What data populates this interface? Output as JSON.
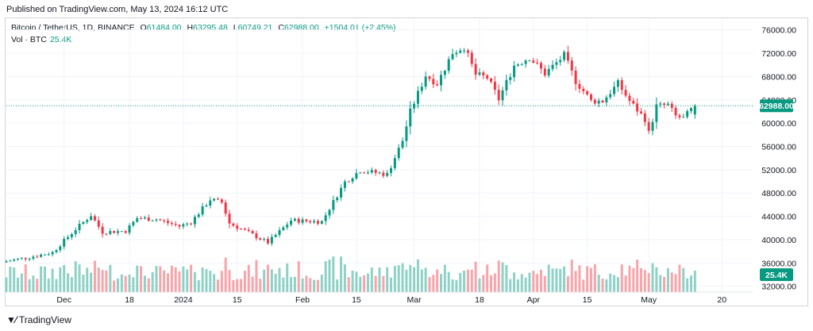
{
  "published": "Published on TradingView.com, May 13, 2024 16:12 UTC",
  "legend": {
    "symbol": "Bitcoin / TetherUS, 1D, BINANCE",
    "o_label": "O",
    "o": "61484.00",
    "h_label": "H",
    "h": "63295.48",
    "l_label": "L",
    "l": "60749.21",
    "c_label": "C",
    "c": "62988.00",
    "change": "+1504.01 (+2.45%)"
  },
  "vol_legend": {
    "label": "Vol · BTC",
    "value": "25.4K"
  },
  "footer": {
    "brand": "TradingView",
    "logo": "tradingview-logo-icon"
  },
  "colors": {
    "up": "#089981",
    "down": "#f23645",
    "vol_up": "#8fd1c6",
    "vol_down": "#f7a5aa",
    "grid": "#f0f3fa",
    "price_line": "#089981"
  },
  "chart_data": {
    "type": "candlestick",
    "title": "Bitcoin / TetherUS, 1D, BINANCE",
    "price_label": "62988.00",
    "volume_label": "25.4K",
    "y_ticks": [
      76000,
      72000,
      68000,
      64000,
      60000,
      56000,
      52000,
      48000,
      44000,
      40000,
      36000,
      32000
    ],
    "y_tick_labels": [
      "76000.00",
      "72000.00",
      "68000.00",
      "64000.00",
      "60000.00",
      "56000.00",
      "52000.00",
      "48000.00",
      "44000.00",
      "40000.00",
      "36000.00",
      "32000.00"
    ],
    "ylim": [
      31000,
      78000
    ],
    "x_ticks": [
      {
        "date": "2023-12-01",
        "label": "Dec"
      },
      {
        "date": "2023-12-18",
        "label": "18"
      },
      {
        "date": "2024-01-01",
        "label": "2024"
      },
      {
        "date": "2024-01-15",
        "label": "15"
      },
      {
        "date": "2024-02-01",
        "label": "Feb"
      },
      {
        "date": "2024-02-15",
        "label": "15"
      },
      {
        "date": "2024-03-01",
        "label": "Mar"
      },
      {
        "date": "2024-03-18",
        "label": "18"
      },
      {
        "date": "2024-04-01",
        "label": "Apr"
      },
      {
        "date": "2024-04-15",
        "label": "15"
      },
      {
        "date": "2024-05-01",
        "label": "May"
      },
      {
        "date": "2024-05-20",
        "label": "20"
      }
    ],
    "x_range": [
      "2023-11-16",
      "2024-05-28"
    ],
    "anchors": [
      [
        "2023-11-16",
        36300
      ],
      [
        "2023-11-22",
        37000
      ],
      [
        "2023-11-28",
        37800
      ],
      [
        "2023-12-04",
        41800
      ],
      [
        "2023-12-08",
        44200
      ],
      [
        "2023-12-11",
        41300
      ],
      [
        "2023-12-17",
        41500
      ],
      [
        "2023-12-20",
        43700
      ],
      [
        "2023-12-25",
        43500
      ],
      [
        "2023-12-31",
        42300
      ],
      [
        "2024-01-03",
        43000
      ],
      [
        "2024-01-08",
        46900
      ],
      [
        "2024-01-11",
        46400
      ],
      [
        "2024-01-13",
        42800
      ],
      [
        "2024-01-18",
        41200
      ],
      [
        "2024-01-23",
        39500
      ],
      [
        "2024-01-29",
        43300
      ],
      [
        "2024-02-06",
        43100
      ],
      [
        "2024-02-12",
        49900
      ],
      [
        "2024-02-16",
        51900
      ],
      [
        "2024-02-23",
        51200
      ],
      [
        "2024-02-27",
        57000
      ],
      [
        "2024-02-29",
        62000
      ],
      [
        "2024-03-04",
        68200
      ],
      [
        "2024-03-07",
        66800
      ],
      [
        "2024-03-11",
        72100
      ],
      [
        "2024-03-14",
        73100
      ],
      [
        "2024-03-17",
        68300
      ],
      [
        "2024-03-20",
        67800
      ],
      [
        "2024-03-23",
        64100
      ],
      [
        "2024-03-27",
        69900
      ],
      [
        "2024-03-31",
        71300
      ],
      [
        "2024-04-04",
        68500
      ],
      [
        "2024-04-09",
        71600
      ],
      [
        "2024-04-12",
        67200
      ],
      [
        "2024-04-16",
        63800
      ],
      [
        "2024-04-19",
        63800
      ],
      [
        "2024-04-23",
        66800
      ],
      [
        "2024-04-26",
        63800
      ],
      [
        "2024-04-30",
        60700
      ],
      [
        "2024-05-01",
        58300
      ],
      [
        "2024-05-03",
        62900
      ],
      [
        "2024-05-06",
        63100
      ],
      [
        "2024-05-08",
        61200
      ],
      [
        "2024-05-10",
        60800
      ],
      [
        "2024-05-13",
        62988
      ]
    ]
  }
}
